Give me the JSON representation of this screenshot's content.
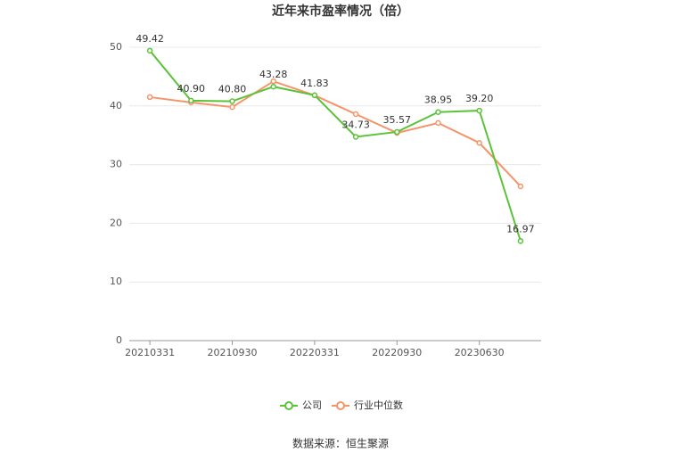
{
  "chart_data": {
    "type": "line",
    "title": "近年来市盈率情况（倍）",
    "categories": [
      "20210331",
      null,
      "20210930",
      null,
      "20220331",
      null,
      "20220930",
      null,
      "20230630",
      null
    ],
    "series": [
      {
        "name": "公司",
        "color": "#5bc33a",
        "values": [
          49.42,
          40.9,
          40.8,
          43.28,
          41.83,
          34.73,
          35.57,
          38.95,
          39.2,
          16.97
        ],
        "value_labels": [
          "49.42",
          "40.90",
          "40.80",
          "43.28",
          "41.83",
          "34.73",
          "35.57",
          "38.95",
          "39.20",
          "16.97"
        ]
      },
      {
        "name": "行业中位数",
        "color": "#f59469",
        "values": [
          41.5,
          40.6,
          39.8,
          44.2,
          41.8,
          38.6,
          35.4,
          37.1,
          33.7,
          26.3
        ]
      }
    ],
    "ylim": [
      0,
      50
    ],
    "yticks": [
      0,
      10,
      20,
      30,
      40,
      50
    ],
    "grid": true,
    "source": "数据来源：恒生聚源"
  }
}
